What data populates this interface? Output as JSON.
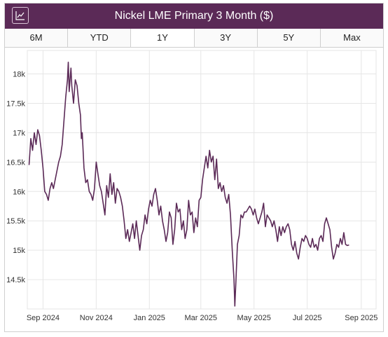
{
  "header": {
    "title": "Nickel LME Primary 3 Month ($)",
    "icon": "line-chart-icon"
  },
  "tabs": [
    {
      "label": "6M",
      "active": false
    },
    {
      "label": "YTD",
      "active": false
    },
    {
      "label": "1Y",
      "active": true
    },
    {
      "label": "3Y",
      "active": false
    },
    {
      "label": "5Y",
      "active": false
    },
    {
      "label": "Max",
      "active": false
    }
  ],
  "colors": {
    "header_bg": "#5b2a57",
    "line": "#5b2a57",
    "grid": "#e6e6e6"
  },
  "chart_data": {
    "type": "line",
    "title": "Nickel LME Primary 3 Month ($)",
    "xlabel": "",
    "ylabel": "",
    "ylim": [
      14000,
      18400
    ],
    "xlim": [
      "2024-08-14",
      "2025-09-18"
    ],
    "grid": true,
    "y_ticks": [
      {
        "value": 14500,
        "label": "14.5k"
      },
      {
        "value": 15000,
        "label": "15k"
      },
      {
        "value": 15500,
        "label": "15.5k"
      },
      {
        "value": 16000,
        "label": "16k"
      },
      {
        "value": 16500,
        "label": "16.5k"
      },
      {
        "value": 17000,
        "label": "17k"
      },
      {
        "value": 17500,
        "label": "17.5k"
      },
      {
        "value": 18000,
        "label": "18k"
      }
    ],
    "x_ticks": [
      {
        "value": "2024-09-01",
        "label": "Sep 2024"
      },
      {
        "value": "2024-11-01",
        "label": "Nov 2024"
      },
      {
        "value": "2025-01-01",
        "label": "Jan 2025"
      },
      {
        "value": "2025-03-01",
        "label": "Mar 2025"
      },
      {
        "value": "2025-05-01",
        "label": "May 2025"
      },
      {
        "value": "2025-07-01",
        "label": "Jul 2025"
      },
      {
        "value": "2025-09-01",
        "label": "Sep 2025"
      }
    ],
    "series": [
      {
        "points": [
          [
            "2024-08-16",
            16450
          ],
          [
            "2024-08-18",
            16900
          ],
          [
            "2024-08-20",
            16700
          ],
          [
            "2024-08-22",
            17000
          ],
          [
            "2024-08-24",
            16800
          ],
          [
            "2024-08-26",
            17050
          ],
          [
            "2024-08-28",
            16950
          ],
          [
            "2024-08-30",
            16700
          ],
          [
            "2024-09-01",
            16400
          ],
          [
            "2024-09-03",
            16000
          ],
          [
            "2024-09-05",
            15950
          ],
          [
            "2024-09-07",
            15850
          ],
          [
            "2024-09-09",
            16050
          ],
          [
            "2024-09-11",
            16150
          ],
          [
            "2024-09-13",
            16050
          ],
          [
            "2024-09-15",
            16200
          ],
          [
            "2024-09-17",
            16350
          ],
          [
            "2024-09-19",
            16500
          ],
          [
            "2024-09-21",
            16600
          ],
          [
            "2024-09-23",
            16800
          ],
          [
            "2024-09-25",
            17200
          ],
          [
            "2024-09-27",
            17600
          ],
          [
            "2024-09-29",
            17900
          ],
          [
            "2024-09-30",
            18200
          ],
          [
            "2024-10-01",
            17700
          ],
          [
            "2024-10-02",
            17900
          ],
          [
            "2024-10-03",
            18100
          ],
          [
            "2024-10-04",
            17800
          ],
          [
            "2024-10-06",
            17500
          ],
          [
            "2024-10-08",
            17900
          ],
          [
            "2024-10-10",
            17800
          ],
          [
            "2024-10-12",
            17500
          ],
          [
            "2024-10-14",
            17300
          ],
          [
            "2024-10-15",
            16900
          ],
          [
            "2024-10-16",
            17000
          ],
          [
            "2024-10-18",
            16400
          ],
          [
            "2024-10-20",
            16150
          ],
          [
            "2024-10-22",
            16200
          ],
          [
            "2024-10-24",
            16000
          ],
          [
            "2024-10-26",
            15950
          ],
          [
            "2024-10-28",
            15850
          ],
          [
            "2024-10-30",
            16050
          ],
          [
            "2024-11-01",
            16500
          ],
          [
            "2024-11-03",
            16300
          ],
          [
            "2024-11-05",
            16100
          ],
          [
            "2024-11-07",
            16000
          ],
          [
            "2024-11-09",
            15800
          ],
          [
            "2024-11-11",
            15600
          ],
          [
            "2024-11-13",
            16100
          ],
          [
            "2024-11-15",
            15900
          ],
          [
            "2024-11-17",
            16300
          ],
          [
            "2024-11-19",
            15950
          ],
          [
            "2024-11-21",
            16150
          ],
          [
            "2024-11-23",
            15800
          ],
          [
            "2024-11-25",
            16050
          ],
          [
            "2024-11-27",
            16000
          ],
          [
            "2024-11-29",
            15900
          ],
          [
            "2024-12-01",
            15750
          ],
          [
            "2024-12-03",
            15500
          ],
          [
            "2024-12-05",
            15200
          ],
          [
            "2024-12-07",
            15350
          ],
          [
            "2024-12-09",
            15150
          ],
          [
            "2024-12-11",
            15300
          ],
          [
            "2024-12-13",
            15450
          ],
          [
            "2024-12-15",
            15200
          ],
          [
            "2024-12-17",
            15500
          ],
          [
            "2024-12-19",
            15250
          ],
          [
            "2024-12-21",
            15000
          ],
          [
            "2024-12-23",
            15250
          ],
          [
            "2024-12-25",
            15350
          ],
          [
            "2024-12-27",
            15600
          ],
          [
            "2024-12-29",
            15450
          ],
          [
            "2024-12-31",
            15700
          ],
          [
            "2025-01-02",
            15850
          ],
          [
            "2025-01-04",
            15750
          ],
          [
            "2025-01-06",
            15950
          ],
          [
            "2025-01-08",
            16050
          ],
          [
            "2025-01-10",
            15850
          ],
          [
            "2025-01-12",
            15600
          ],
          [
            "2025-01-14",
            15750
          ],
          [
            "2025-01-16",
            15500
          ],
          [
            "2025-01-18",
            15350
          ],
          [
            "2025-01-20",
            15150
          ],
          [
            "2025-01-22",
            15300
          ],
          [
            "2025-01-24",
            15650
          ],
          [
            "2025-01-26",
            15550
          ],
          [
            "2025-01-28",
            15100
          ],
          [
            "2025-01-30",
            15350
          ],
          [
            "2025-02-01",
            15800
          ],
          [
            "2025-02-03",
            15650
          ],
          [
            "2025-02-05",
            15700
          ],
          [
            "2025-02-07",
            15350
          ],
          [
            "2025-02-09",
            15500
          ],
          [
            "2025-02-11",
            15200
          ],
          [
            "2025-02-13",
            15350
          ],
          [
            "2025-02-15",
            15850
          ],
          [
            "2025-02-17",
            15600
          ],
          [
            "2025-02-19",
            15650
          ],
          [
            "2025-02-21",
            15300
          ],
          [
            "2025-02-23",
            15550
          ],
          [
            "2025-02-25",
            15400
          ],
          [
            "2025-02-27",
            15850
          ],
          [
            "2025-03-01",
            15900
          ],
          [
            "2025-03-03",
            16200
          ],
          [
            "2025-03-05",
            16400
          ],
          [
            "2025-03-07",
            16600
          ],
          [
            "2025-03-09",
            16400
          ],
          [
            "2025-03-11",
            16700
          ],
          [
            "2025-03-13",
            16500
          ],
          [
            "2025-03-15",
            16600
          ],
          [
            "2025-03-17",
            16200
          ],
          [
            "2025-03-19",
            16550
          ],
          [
            "2025-03-21",
            16050
          ],
          [
            "2025-03-23",
            16150
          ],
          [
            "2025-03-25",
            16000
          ],
          [
            "2025-03-27",
            16100
          ],
          [
            "2025-03-29",
            15900
          ],
          [
            "2025-03-31",
            15800
          ],
          [
            "2025-04-02",
            15950
          ],
          [
            "2025-04-04",
            15600
          ],
          [
            "2025-04-06",
            15000
          ],
          [
            "2025-04-08",
            14500
          ],
          [
            "2025-04-09",
            14050
          ],
          [
            "2025-04-10",
            14400
          ],
          [
            "2025-04-12",
            15100
          ],
          [
            "2025-04-14",
            15250
          ],
          [
            "2025-04-16",
            15600
          ],
          [
            "2025-04-18",
            15550
          ],
          [
            "2025-04-20",
            15650
          ],
          [
            "2025-04-22",
            15650
          ],
          [
            "2025-04-24",
            15700
          ],
          [
            "2025-04-26",
            15750
          ],
          [
            "2025-04-28",
            15700
          ],
          [
            "2025-04-30",
            15600
          ],
          [
            "2025-05-02",
            15700
          ],
          [
            "2025-05-04",
            15550
          ],
          [
            "2025-05-06",
            15450
          ],
          [
            "2025-05-08",
            15550
          ],
          [
            "2025-05-10",
            15650
          ],
          [
            "2025-05-12",
            15800
          ],
          [
            "2025-05-14",
            15400
          ],
          [
            "2025-05-16",
            15600
          ],
          [
            "2025-05-18",
            15550
          ],
          [
            "2025-05-20",
            15500
          ],
          [
            "2025-05-22",
            15400
          ],
          [
            "2025-05-24",
            15500
          ],
          [
            "2025-05-26",
            15350
          ],
          [
            "2025-05-28",
            15150
          ],
          [
            "2025-05-30",
            15400
          ],
          [
            "2025-06-01",
            15250
          ],
          [
            "2025-06-03",
            15400
          ],
          [
            "2025-06-05",
            15300
          ],
          [
            "2025-06-07",
            15400
          ],
          [
            "2025-06-09",
            15450
          ],
          [
            "2025-06-11",
            15350
          ],
          [
            "2025-06-13",
            15100
          ],
          [
            "2025-06-15",
            15000
          ],
          [
            "2025-06-17",
            15150
          ],
          [
            "2025-06-19",
            14950
          ],
          [
            "2025-06-21",
            14850
          ],
          [
            "2025-06-23",
            15050
          ],
          [
            "2025-06-25",
            15200
          ],
          [
            "2025-06-27",
            15150
          ],
          [
            "2025-06-29",
            15250
          ],
          [
            "2025-07-01",
            15200
          ],
          [
            "2025-07-03",
            15100
          ],
          [
            "2025-07-05",
            15050
          ],
          [
            "2025-07-07",
            15200
          ],
          [
            "2025-07-09",
            15050
          ],
          [
            "2025-07-11",
            15100
          ],
          [
            "2025-07-13",
            15000
          ],
          [
            "2025-07-15",
            15200
          ],
          [
            "2025-07-17",
            15250
          ],
          [
            "2025-07-19",
            15150
          ],
          [
            "2025-07-21",
            15450
          ],
          [
            "2025-07-23",
            15550
          ],
          [
            "2025-07-25",
            15450
          ],
          [
            "2025-07-27",
            15350
          ],
          [
            "2025-07-29",
            15050
          ],
          [
            "2025-07-31",
            14850
          ],
          [
            "2025-08-02",
            14950
          ],
          [
            "2025-08-04",
            15100
          ],
          [
            "2025-08-06",
            15050
          ],
          [
            "2025-08-08",
            15200
          ],
          [
            "2025-08-10",
            15100
          ],
          [
            "2025-08-12",
            15300
          ],
          [
            "2025-08-14",
            15100
          ],
          [
            "2025-08-16",
            15080
          ],
          [
            "2025-08-18",
            15090
          ]
        ]
      }
    ]
  }
}
